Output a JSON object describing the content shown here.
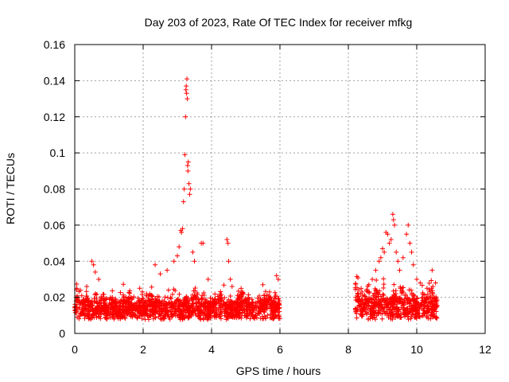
{
  "chart_data": {
    "type": "scatter",
    "title": "Day 203 of 2023, Rate Of TEC Index for receiver mfkg",
    "xlabel": "GPS time / hours",
    "ylabel": "ROTI / TECUs",
    "xlim": [
      0,
      12
    ],
    "ylim": [
      0,
      0.16
    ],
    "xticks": [
      "0",
      "2",
      "4",
      "6",
      "8",
      "10",
      "12"
    ],
    "yticks": [
      "0",
      "0.02",
      "0.04",
      "0.06",
      "0.08",
      "0.1",
      "0.12",
      "0.14",
      "0.16"
    ],
    "grid": true,
    "marker": "+",
    "series": [
      {
        "name": "ROTI",
        "color": "#ff0000",
        "baseline_segments": [
          {
            "x_start": 0.0,
            "x_end": 6.0,
            "y_typical": 0.012,
            "y_spread": 0.01
          },
          {
            "x_start": 8.2,
            "x_end": 10.6,
            "y_typical": 0.013,
            "y_spread": 0.012
          }
        ],
        "points": [
          [
            0.35,
            0.026
          ],
          [
            0.5,
            0.04
          ],
          [
            0.55,
            0.038
          ],
          [
            0.6,
            0.034
          ],
          [
            0.7,
            0.03
          ],
          [
            1.1,
            0.02
          ],
          [
            1.5,
            0.02
          ],
          [
            1.9,
            0.025
          ],
          [
            2.1,
            0.022
          ],
          [
            2.35,
            0.038
          ],
          [
            2.5,
            0.033
          ],
          [
            2.7,
            0.035
          ],
          [
            2.9,
            0.04
          ],
          [
            3.0,
            0.043
          ],
          [
            3.05,
            0.048
          ],
          [
            3.1,
            0.057
          ],
          [
            3.12,
            0.056
          ],
          [
            3.15,
            0.058
          ],
          [
            3.18,
            0.073
          ],
          [
            3.2,
            0.08
          ],
          [
            3.22,
            0.099
          ],
          [
            3.24,
            0.12
          ],
          [
            3.25,
            0.135
          ],
          [
            3.26,
            0.137
          ],
          [
            3.27,
            0.133
          ],
          [
            3.28,
            0.141
          ],
          [
            3.29,
            0.13
          ],
          [
            3.3,
            0.093
          ],
          [
            3.31,
            0.09
          ],
          [
            3.32,
            0.095
          ],
          [
            3.34,
            0.083
          ],
          [
            3.36,
            0.077
          ],
          [
            3.38,
            0.08
          ],
          [
            3.45,
            0.045
          ],
          [
            3.5,
            0.04
          ],
          [
            3.7,
            0.05
          ],
          [
            3.75,
            0.05
          ],
          [
            3.9,
            0.03
          ],
          [
            4.45,
            0.052
          ],
          [
            4.48,
            0.05
          ],
          [
            4.5,
            0.04
          ],
          [
            4.55,
            0.03
          ],
          [
            4.6,
            0.026
          ],
          [
            5.5,
            0.027
          ],
          [
            5.9,
            0.032
          ],
          [
            5.95,
            0.03
          ],
          [
            8.4,
            0.023
          ],
          [
            8.6,
            0.027
          ],
          [
            8.7,
            0.03
          ],
          [
            8.8,
            0.035
          ],
          [
            8.9,
            0.04
          ],
          [
            8.95,
            0.042
          ],
          [
            9.0,
            0.047
          ],
          [
            9.05,
            0.045
          ],
          [
            9.1,
            0.056
          ],
          [
            9.15,
            0.055
          ],
          [
            9.2,
            0.05
          ],
          [
            9.25,
            0.052
          ],
          [
            9.3,
            0.066
          ],
          [
            9.32,
            0.063
          ],
          [
            9.35,
            0.06
          ],
          [
            9.4,
            0.045
          ],
          [
            9.45,
            0.04
          ],
          [
            9.5,
            0.035
          ],
          [
            9.6,
            0.042
          ],
          [
            9.7,
            0.055
          ],
          [
            9.75,
            0.06
          ],
          [
            9.8,
            0.05
          ],
          [
            9.85,
            0.045
          ],
          [
            9.9,
            0.038
          ],
          [
            10.0,
            0.03
          ],
          [
            10.1,
            0.028
          ],
          [
            10.3,
            0.025
          ],
          [
            10.45,
            0.035
          ],
          [
            10.55,
            0.028
          ]
        ]
      }
    ]
  }
}
